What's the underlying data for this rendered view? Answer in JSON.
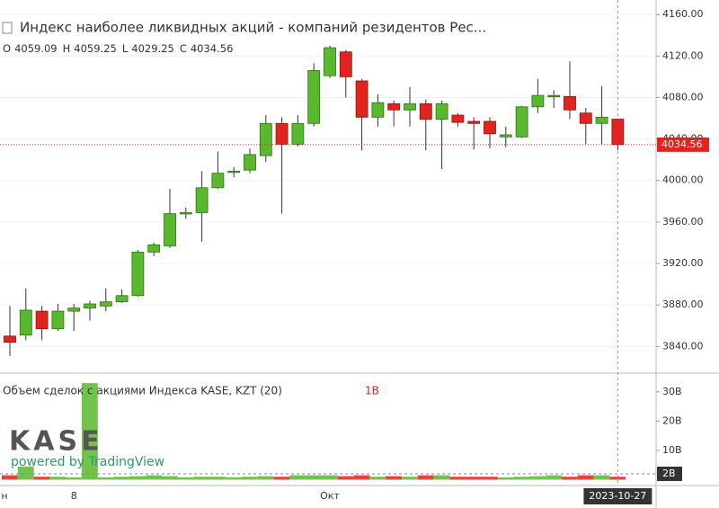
{
  "chart_data": [
    {
      "type": "candlestick",
      "title": "Индекс наиболее ликвидных акций - компаний резидентов Рес...",
      "ohlc_keys": [
        "O",
        "H",
        "L",
        "C"
      ],
      "categories": [
        "н",
        null,
        null,
        null,
        "8",
        null,
        null,
        null,
        null,
        null,
        null,
        null,
        null,
        null,
        null,
        null,
        null,
        null,
        null,
        null,
        "Окт",
        null,
        null,
        null,
        null,
        null,
        null,
        null,
        null,
        null,
        null,
        null,
        null,
        null,
        null,
        null,
        null,
        null,
        null
      ],
      "open": [
        3850,
        3851,
        3874,
        3857,
        3874,
        3877,
        3879,
        3883,
        3889,
        3931,
        3937,
        3968,
        3969,
        3993,
        4008,
        4010,
        4024,
        4055,
        4035,
        4055,
        4101,
        4124,
        4096,
        4061,
        4074,
        4068,
        4074,
        4059,
        4063,
        4057,
        4057,
        4042,
        4042,
        4071,
        4081,
        4081,
        4065,
        4055,
        4059.09
      ],
      "high": [
        3879,
        3896,
        3879,
        3881,
        3881,
        3884,
        3896,
        3895,
        3933,
        3940,
        3992,
        3974,
        4009,
        4028,
        4013,
        4031,
        4063,
        4061,
        4063,
        4113,
        4130,
        4126,
        4098,
        4083,
        4077,
        4090,
        4078,
        4077,
        4065,
        4061,
        4061,
        4052,
        4072,
        4098,
        4087,
        4115,
        4070,
        4091,
        4059.25
      ],
      "low": [
        3831,
        3846,
        3846,
        3855,
        3855,
        3865,
        3874,
        3882,
        3888,
        3927,
        3935,
        3963,
        3941,
        3992,
        4003,
        4007,
        4018,
        3968,
        4033,
        4052,
        4099,
        4080,
        4029,
        4052,
        4052,
        4052,
        4029,
        4011,
        4052,
        4030,
        4031,
        4032,
        4041,
        4065,
        4070,
        4059,
        4035,
        4035,
        4029.25
      ],
      "close": [
        3844,
        3875,
        3857,
        3874,
        3877,
        3881,
        3883,
        3889,
        3931,
        3938,
        3968,
        3969,
        3993,
        4007,
        4009,
        4025,
        4055,
        4035,
        4055,
        4106,
        4128,
        4100,
        4061,
        4075,
        4068,
        4074,
        4059,
        4074,
        4056,
        4055,
        4045,
        4044,
        4071,
        4082,
        4082,
        4068,
        4055,
        4061,
        4034.56
      ],
      "up_color": "#57b92b",
      "down_color": "#e3231d",
      "ylim": [
        3816,
        4174
      ],
      "yticks": [
        {
          "value": 3840,
          "label": "3840.00"
        },
        {
          "value": 3880,
          "label": "3880.00"
        },
        {
          "value": 3920,
          "label": "3920.00"
        },
        {
          "value": 3960,
          "label": "3960.00"
        },
        {
          "value": 4000,
          "label": "4000.00"
        },
        {
          "value": 4040,
          "label": "4040.00"
        },
        {
          "value": 4080,
          "label": "4080.00"
        },
        {
          "value": 4120,
          "label": "4120.00"
        },
        {
          "value": 4160,
          "label": "4160.00"
        }
      ],
      "grid": true,
      "crosshair_date": "2023-10-27",
      "watermark": "KASE",
      "watermark_sub": "powered by TradingView"
    },
    {
      "type": "bar",
      "title": "Объем сделок с акциями Индекса KASE, KZT (20)",
      "legend_value_label": "1B",
      "values": [
        1.5,
        4.5,
        1,
        1,
        0.8,
        33,
        0.8,
        1,
        1.2,
        1.5,
        1.2,
        0.8,
        1,
        1,
        0.8,
        1,
        1.2,
        1,
        1.5,
        1.5,
        1.5,
        1.2,
        1.5,
        1,
        1.2,
        1,
        1.5,
        1.5,
        1,
        1,
        1,
        0.8,
        1,
        1.2,
        1.5,
        1,
        1.5,
        1.5,
        1
      ],
      "ylim": [
        -2,
        35.8
      ],
      "yticks": [
        {
          "value": 10,
          "label": "10B"
        },
        {
          "value": 20,
          "label": "20B"
        },
        {
          "value": 30,
          "label": "30B"
        }
      ],
      "ma": {
        "value": 2,
        "label": "2B"
      }
    }
  ]
}
